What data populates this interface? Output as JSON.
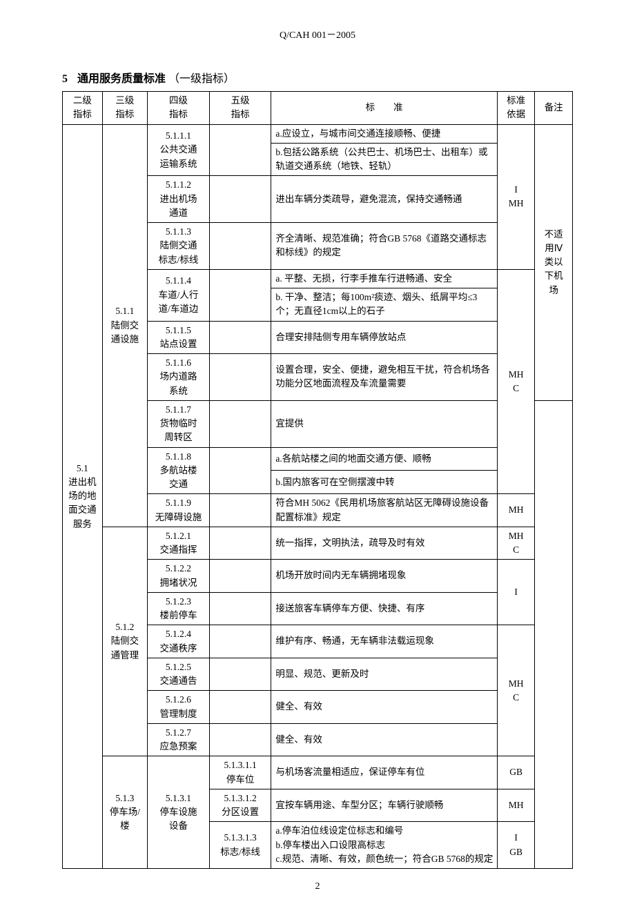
{
  "doc_code": "Q/CAH 001－2005",
  "section_number": "5",
  "section_title_bold": "通用服务质量标准",
  "section_title_paren": "（一级指标）",
  "page_number": "2",
  "headers": {
    "c1": "二级\n指标",
    "c2": "三级\n指标",
    "c3": "四级\n指标",
    "c4": "五级\n指标",
    "c5": "标　　准",
    "c6": "标准\n依据",
    "c7": "备注"
  },
  "lvl2": "5.1\n进出机\n场的地\n面交通\n服务",
  "lvl3_1": "5.1.1\n陆侧交\n通设施",
  "lvl3_2": "5.1.2\n陆侧交\n通管理",
  "lvl3_3": "5.1.3\n停车场/\n楼",
  "r": [
    {
      "l4": "5.1.1.1\n公共交通\n运输系统",
      "std_a": "a.应设立，与城市间交通连接顺畅、便捷",
      "std_b": "b.包括公路系统（公共巴士、机场巴士、出租车）或轨道交通系统（地铁、轻轨）"
    },
    {
      "l4": "5.1.1.2\n进出机场\n通道",
      "std": "进出车辆分类疏导，避免混流，保持交通畅通"
    },
    {
      "l4": "5.1.1.3\n陆侧交通\n标志/标线",
      "std": "齐全清晰、规范准确；符合GB 5768《道路交通标志和标线》的规定"
    },
    {
      "l4": "5.1.1.4\n车道/人行\n道/车道边",
      "std_a": "a. 平整、无损，行李手推车行进畅通、安全",
      "std_b": "b. 干净、整洁；每100m²痰迹、烟头、纸屑平均≤3个；无直径1cm以上的石子"
    },
    {
      "l4": "5.1.1.5\n站点设置",
      "std": "合理安排陆侧专用车辆停放站点"
    },
    {
      "l4": "5.1.1.6\n场内道路\n系统",
      "std": "设置合理，安全、便捷，避免相互干扰，符合机场各功能分区地面流程及车流量需要"
    },
    {
      "l4": "5.1.1.7\n货物临时\n周转区",
      "std": "宜提供"
    },
    {
      "l4": "5.1.1.8\n多航站楼\n交通",
      "std_a": "a.各航站楼之间的地面交通方便、顺畅",
      "std_b": "b.国内旅客可在空侧摆渡中转"
    },
    {
      "l4": "5.1.1.9\n无障碍设施",
      "std": "符合MH 5062《民用机场旅客航站区无障碍设施设备配置标准》规定"
    },
    {
      "l4": "5.1.2.1\n交通指挥",
      "std": "统一指挥，文明执法，疏导及时有效"
    },
    {
      "l4": "5.1.2.2\n拥堵状况",
      "std": "机场开放时间内无车辆拥堵现象"
    },
    {
      "l4": "5.1.2.3\n楼前停车",
      "std": "接送旅客车辆停车方便、快捷、有序"
    },
    {
      "l4": "5.1.2.4\n交通秩序",
      "std": "维护有序、畅通，无车辆非法载运现象"
    },
    {
      "l4": "5.1.2.5\n交通通告",
      "std": "明显、规范、更新及时"
    },
    {
      "l4": "5.1.2.6\n管理制度",
      "std": "健全、有效"
    },
    {
      "l4": "5.1.2.7\n应急预案",
      "std": "健全、有效"
    }
  ],
  "l4_531": "5.1.3.1\n停车设施\n设备",
  "l5_1": "5.1.3.1.1\n停车位",
  "l5_1_std": "与机场客流量相适应，保证停车有位",
  "l5_2": "5.1.3.1.2\n分区设置",
  "l5_2_std": "宜按车辆用途、车型分区；车辆行驶顺畅",
  "l5_3": "5.1.3.1.3\n标志/标线",
  "l5_3_a": "a.停车泊位线设定位标志和编号",
  "l5_3_b": "b.停车楼出入口设限高标志",
  "l5_3_c": "c.规范、清晰、有效，颜色统一；符合GB 5768的规定",
  "basis": {
    "b1": "I\nMH",
    "b2": "MH\nC",
    "b3": "MH",
    "b4": "MH\nC",
    "b5": "I",
    "b6": "MH\nC",
    "b7": "GB",
    "b8": "MH",
    "b9": "I\nGB"
  },
  "remark1": "不适\n用Ⅳ\n类以\n下机\n场"
}
